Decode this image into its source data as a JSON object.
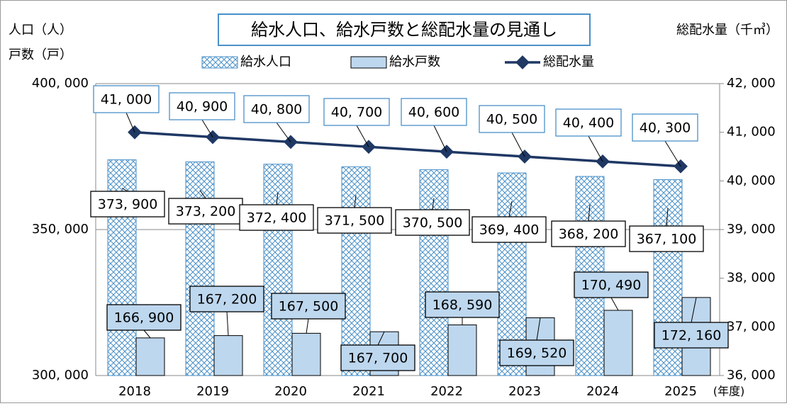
{
  "chart_data": {
    "type": "combo",
    "title": "給水人口、給水戸数と総配水量の見通し",
    "y_label_1": "人口（人）",
    "y_label_2": "戸数（戸）",
    "y2_label": "総配水量（千㎥）",
    "x_unit": "(年度)",
    "categories": [
      "2018",
      "2019",
      "2020",
      "2021",
      "2022",
      "2023",
      "2024",
      "2025"
    ],
    "series": [
      {
        "name": "給水人口",
        "type": "bar",
        "pattern": "crosshatch",
        "color": "#4a90c8",
        "axis": "y",
        "values": [
          373900,
          373200,
          372400,
          371500,
          370500,
          369400,
          368200,
          367100
        ],
        "value_labels": [
          "373, 900",
          "373, 200",
          "372, 400",
          "371, 500",
          "370, 500",
          "369, 400",
          "368, 200",
          "367, 100"
        ]
      },
      {
        "name": "給水戸数",
        "type": "bar",
        "color": "#bdd7ee",
        "axis": "y3",
        "values": [
          166900,
          167200,
          167500,
          167700,
          168590,
          169520,
          170490,
          172160
        ],
        "value_labels": [
          "166, 900",
          "167, 200",
          "167, 500",
          "167, 700",
          "168, 590",
          "169, 520",
          "170, 490",
          "172, 160"
        ]
      },
      {
        "name": "総配水量",
        "type": "line",
        "color": "#1f3864",
        "axis": "y2",
        "values": [
          41000,
          40900,
          40800,
          40700,
          40600,
          40500,
          40400,
          40300
        ],
        "value_labels": [
          "41, 000",
          "40, 900",
          "40, 800",
          "40, 700",
          "40, 600",
          "40, 500",
          "40, 400",
          "40, 300"
        ]
      }
    ],
    "ylim": [
      300000,
      400000
    ],
    "yticks": [
      {
        "value": 300000,
        "label": "300, 000"
      },
      {
        "value": 350000,
        "label": "350, 000"
      },
      {
        "value": 400000,
        "label": "400, 000"
      }
    ],
    "y2lim": [
      36000,
      42000
    ],
    "y2ticks": [
      {
        "value": 36000,
        "label": "36, 000"
      },
      {
        "value": 37000,
        "label": "37, 000"
      },
      {
        "value": 38000,
        "label": "38, 000"
      },
      {
        "value": 39000,
        "label": "39, 000"
      },
      {
        "value": 40000,
        "label": "40, 000"
      },
      {
        "value": 41000,
        "label": "41, 000"
      },
      {
        "value": 42000,
        "label": "42, 000"
      }
    ],
    "y3lim": [
      162000,
      200000
    ],
    "grid": true
  }
}
